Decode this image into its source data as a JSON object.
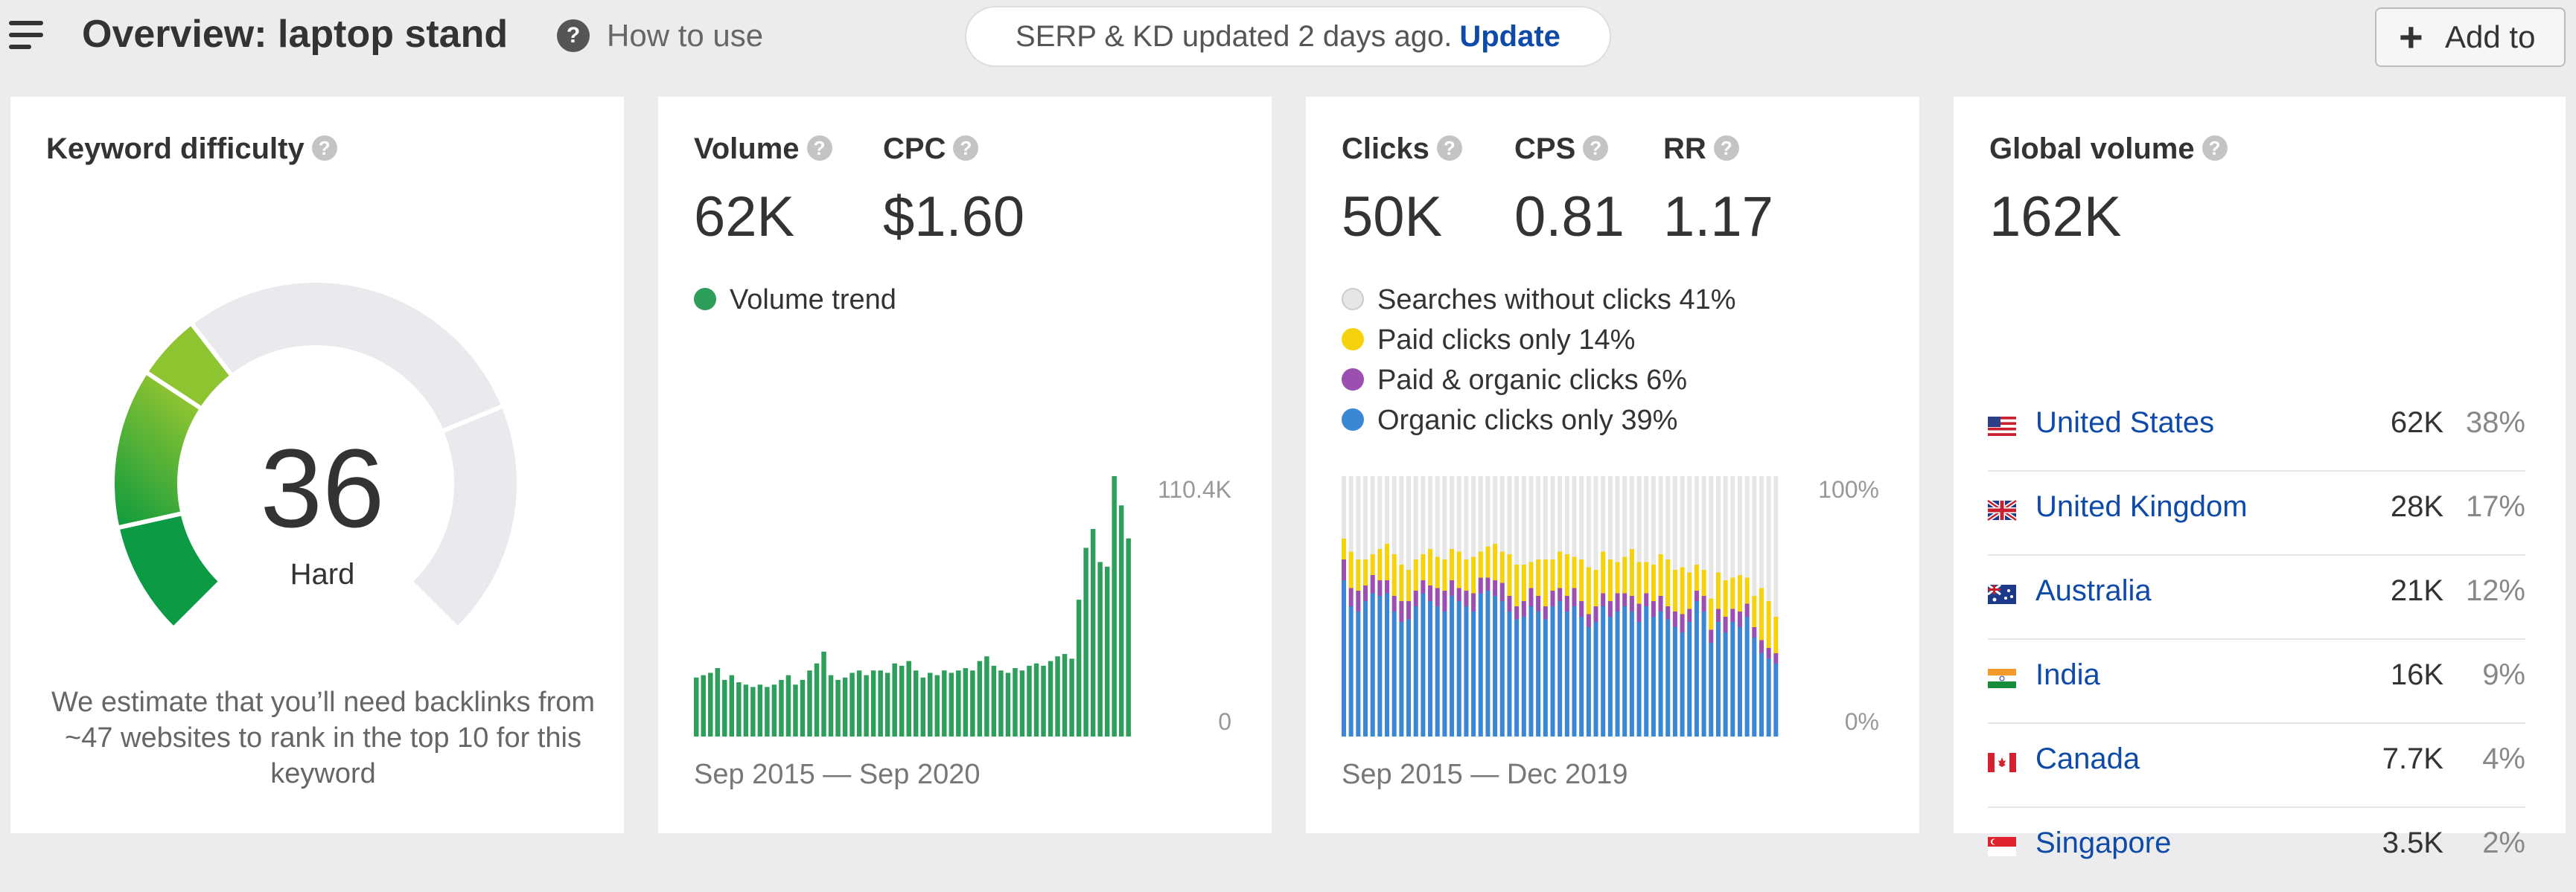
{
  "header": {
    "title": "Overview: laptop stand",
    "help_label": "How to use",
    "update_notice": "SERP & KD updated 2 days ago.",
    "update_link": "Update",
    "add_button": "Add to"
  },
  "kd_card": {
    "title": "Keyword difficulty",
    "value": "36",
    "level": "Hard",
    "description": "We estimate that you’ll need backlinks from ~47 websites to rank in the top 10 for this keyword",
    "gauge_value": 36
  },
  "volume_card": {
    "volume_label": "Volume",
    "volume_value": "62K",
    "cpc_label": "CPC",
    "cpc_value": "$1.60",
    "legend": "Volume trend",
    "y_max_label": "110.4K",
    "y_min_label": "0",
    "range": "Sep 2015 — Sep 2020"
  },
  "clicks_card": {
    "clicks_label": "Clicks",
    "clicks_value": "50K",
    "cps_label": "CPS",
    "cps_value": "0.81",
    "rr_label": "RR",
    "rr_value": "1.17",
    "legend": [
      {
        "label": "Searches without clicks 41%",
        "color": "#e6e6e6"
      },
      {
        "label": "Paid clicks only 14%",
        "color": "#f5d20c"
      },
      {
        "label": "Paid & organic clicks 6%",
        "color": "#9b4fb0"
      },
      {
        "label": "Organic clicks only 39%",
        "color": "#3a87d6"
      }
    ],
    "y_max_label": "100%",
    "y_min_label": "0%",
    "range": "Sep 2015 — Dec 2019"
  },
  "global_card": {
    "title": "Global volume",
    "value": "162K",
    "countries": [
      {
        "name": "United States",
        "volume": "62K",
        "percent": "38%",
        "flag": "us-flag-icon"
      },
      {
        "name": "United Kingdom",
        "volume": "28K",
        "percent": "17%",
        "flag": "uk-flag-icon"
      },
      {
        "name": "Australia",
        "volume": "21K",
        "percent": "12%",
        "flag": "au-flag-icon"
      },
      {
        "name": "India",
        "volume": "16K",
        "percent": "9%",
        "flag": "in-flag-icon"
      },
      {
        "name": "Canada",
        "volume": "7.7K",
        "percent": "4%",
        "flag": "ca-flag-icon"
      },
      {
        "name": "Singapore",
        "volume": "3.5K",
        "percent": "2%",
        "flag": "sg-flag-icon"
      }
    ]
  },
  "chart_data": [
    {
      "type": "bar",
      "title": "Volume trend",
      "x_range": [
        "Sep 2015",
        "Sep 2020"
      ],
      "ylim": [
        0,
        110400
      ],
      "color": "#2e9e5b",
      "values": [
        25000,
        26000,
        27000,
        29000,
        24000,
        26000,
        23000,
        22000,
        21000,
        22000,
        21000,
        22000,
        24000,
        26000,
        22000,
        24000,
        28000,
        31000,
        36000,
        26000,
        24000,
        25000,
        27000,
        28000,
        26000,
        28000,
        28000,
        27000,
        31000,
        30000,
        32000,
        28000,
        25000,
        27000,
        26000,
        28000,
        27000,
        28000,
        29000,
        28000,
        32000,
        34000,
        30000,
        28000,
        27000,
        29000,
        28000,
        30000,
        31000,
        30000,
        32000,
        34000,
        35000,
        33000,
        58000,
        80000,
        88000,
        74000,
        72000,
        110400,
        98000,
        84000
      ]
    },
    {
      "type": "bar",
      "subtype": "stacked-percent",
      "x_range": [
        "Sep 2015",
        "Dec 2019"
      ],
      "ylim": [
        0,
        100
      ],
      "series": [
        {
          "name": "Organic clicks only",
          "color": "#3a87d6",
          "values": [
            60,
            50,
            48,
            52,
            55,
            54,
            55,
            48,
            44,
            45,
            50,
            55,
            52,
            50,
            48,
            54,
            52,
            50,
            48,
            55,
            56,
            54,
            52,
            48,
            45,
            46,
            50,
            48,
            45,
            50,
            52,
            48,
            50,
            46,
            42,
            44,
            50,
            46,
            48,
            50,
            48,
            44,
            50,
            46,
            48,
            45,
            42,
            40,
            44,
            52,
            48,
            36,
            44,
            40,
            44,
            42,
            46,
            38,
            32,
            30,
            28
          ]
        },
        {
          "name": "Paid & organic clicks",
          "color": "#9b4fb0",
          "values": [
            8,
            7,
            8,
            6,
            7,
            6,
            5,
            6,
            8,
            7,
            6,
            5,
            6,
            7,
            8,
            6,
            5,
            6,
            7,
            6,
            5,
            6,
            7,
            6,
            5,
            6,
            7,
            6,
            5,
            6,
            5,
            6,
            7,
            6,
            5,
            6,
            5,
            6,
            7,
            5,
            6,
            7,
            5,
            6,
            6,
            5,
            6,
            7,
            5,
            4,
            6,
            5,
            5,
            6,
            5,
            6,
            5,
            4,
            5,
            4,
            4
          ]
        },
        {
          "name": "Paid clicks only",
          "color": "#f5d20c",
          "values": [
            8,
            14,
            12,
            10,
            8,
            12,
            14,
            16,
            14,
            12,
            12,
            10,
            14,
            12,
            12,
            12,
            14,
            12,
            14,
            10,
            12,
            14,
            12,
            16,
            16,
            14,
            10,
            14,
            18,
            12,
            14,
            16,
            12,
            16,
            18,
            14,
            16,
            16,
            12,
            14,
            18,
            16,
            12,
            14,
            16,
            18,
            16,
            18,
            14,
            10,
            10,
            12,
            14,
            14,
            12,
            14,
            10,
            12,
            20,
            18,
            14
          ]
        }
      ]
    }
  ]
}
